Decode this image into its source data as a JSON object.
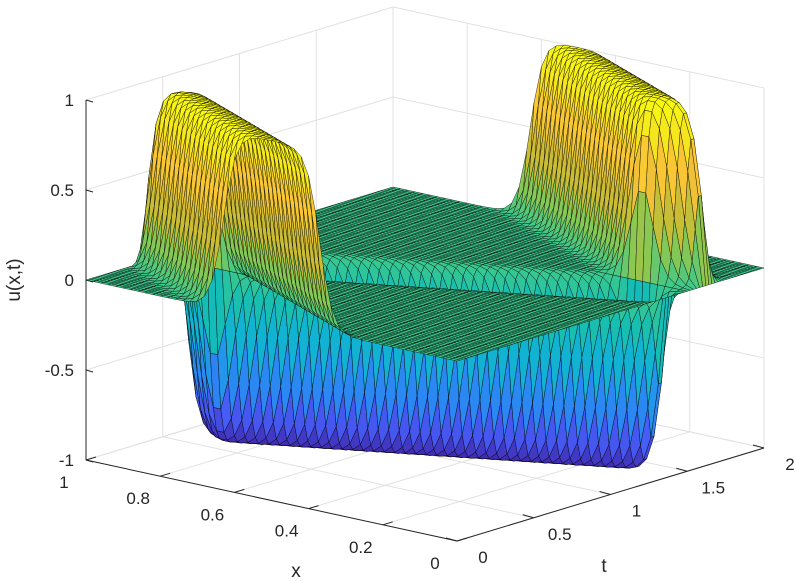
{
  "chart_data": {
    "type": "surface",
    "title": "",
    "xlabel": "x",
    "ylabel": "t",
    "zlabel": "u(x,t)",
    "xlim": [
      0,
      1
    ],
    "ylim": [
      0,
      2
    ],
    "zlim": [
      -1,
      1
    ],
    "grid": true,
    "colormap": "parula",
    "edge_color": "#000000",
    "x_ticks": [
      0,
      0.2,
      0.4,
      0.6,
      0.8,
      1
    ],
    "x_tick_labels": [
      "0",
      "0.2",
      "0.4",
      "0.6",
      "0.8",
      "1"
    ],
    "t_ticks": [
      0,
      0.5,
      1,
      1.5,
      2
    ],
    "t_tick_labels": [
      "0",
      "0.5",
      "1",
      "1.5",
      "2"
    ],
    "z_ticks": [
      -1,
      -0.5,
      0,
      0.5,
      1
    ],
    "z_tick_labels": [
      "-1",
      "-0.5",
      "0",
      "0.5",
      "1"
    ],
    "surface": {
      "description": "traveling flat-topped pulse with sign-flipping reflections at x=0 and x=1",
      "amplitude": 1,
      "initial_center_x": 0.5,
      "speed": 1,
      "half_width": 0.13,
      "edge_sharpness": 0.035
    }
  }
}
